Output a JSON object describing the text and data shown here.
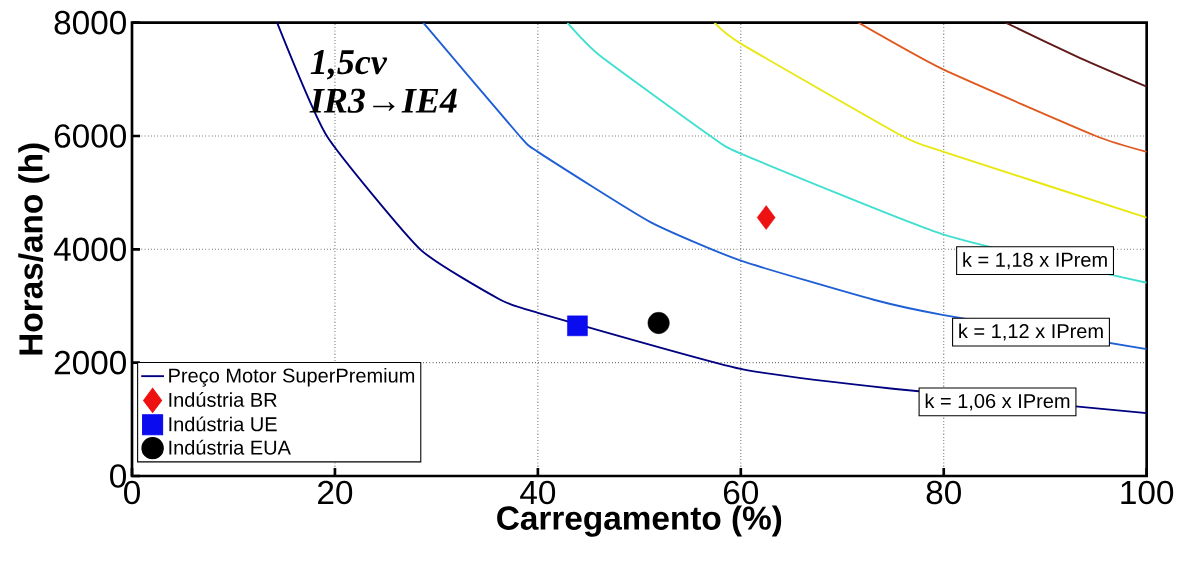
{
  "chart_data": {
    "type": "line",
    "xlabel": "Carregamento (%)",
    "ylabel": "Horas/ano (h)",
    "xlim": [
      0,
      100
    ],
    "ylim": [
      0,
      8000
    ],
    "xticks": [
      0,
      20,
      40,
      60,
      80,
      100
    ],
    "yticks": [
      0,
      2000,
      4000,
      6000,
      8000
    ],
    "grid": true,
    "legend": "bottom left",
    "line_style": "solid",
    "series": [
      {
        "name": "Preço Motor SuperPremium",
        "color": "#000080",
        "x": [
          14.3,
          19.2,
          28.4,
          36.3,
          40,
          60,
          75,
          100
        ],
        "values": [
          8000,
          6000,
          4000,
          3110,
          2880,
          1890,
          1540,
          1110
        ]
      },
      {
        "color": "#1f5fd6",
        "x": [
          28.7,
          38.2,
          40,
          51,
          60,
          73.1,
          80,
          100
        ],
        "values": [
          8000,
          6000,
          5720,
          4490,
          3800,
          3110,
          2840,
          2240
        ]
      },
      {
        "color": "#40e0d0",
        "x": [
          42.9,
          46.1,
          57,
          60,
          80,
          100
        ],
        "values": [
          8000,
          7420,
          6000,
          5690,
          4260,
          3410
        ]
      },
      {
        "color": "#e8e810",
        "x": [
          57.4,
          60,
          75.9,
          80,
          100
        ],
        "values": [
          8000,
          7630,
          6000,
          5720,
          4560
        ]
      },
      {
        "color": "#e05a20",
        "x": [
          71.6,
          80,
          95,
          100
        ],
        "values": [
          8000,
          7170,
          6000,
          5720
        ]
      },
      {
        "color": "#601818",
        "x": [
          86.1,
          93.5,
          100
        ],
        "values": [
          8000,
          7370,
          6870
        ]
      },
      {
        "name": "Indústria BR",
        "type": "scatter",
        "marker": "diamond",
        "color": "#ee1111",
        "x": [
          62.5
        ],
        "values": [
          4560
        ]
      },
      {
        "name": "Indústria UE",
        "type": "scatter",
        "marker": "square",
        "color": "#0b0bf0",
        "x": [
          43.9
        ],
        "values": [
          2650
        ]
      },
      {
        "name": "Indústria EUA",
        "type": "scatter",
        "marker": "circle",
        "color": "#000000",
        "x": [
          51.9
        ],
        "values": [
          2700
        ]
      }
    ],
    "annotations": [
      "1,5cv",
      "IR3→IE4",
      {
        "text": "k = 1,18 x IPrem",
        "x": 89.0,
        "y": 3800
      },
      {
        "text": "k = 1,12 x IPrem",
        "x": 88.6,
        "y": 2540
      },
      {
        "text": "k = 1,06 x IPrem",
        "x": 85.3,
        "y": 1307
      }
    ]
  }
}
